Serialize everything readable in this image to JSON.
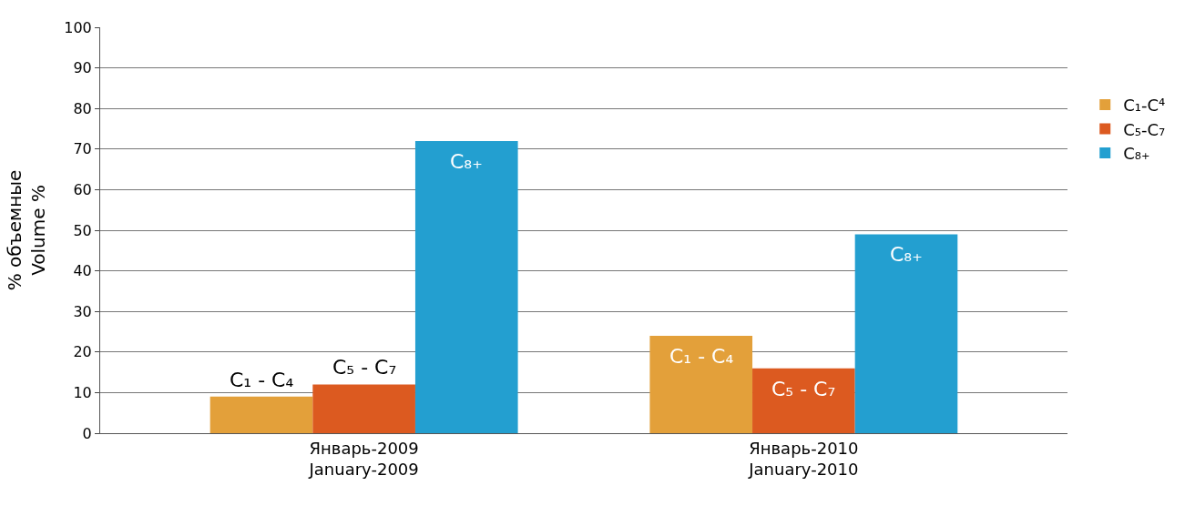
{
  "chart_data": {
    "type": "bar",
    "categories": [
      "Январь-2009\nJanuary-2009",
      "Январь-2010\nJanuary-2010"
    ],
    "ylabel": "% объемные\nVolume %",
    "series": [
      {
        "name": "C₁-C⁴",
        "color": "#e3a03a",
        "values": [
          9,
          24
        ]
      },
      {
        "name": "C₅-C₇",
        "color": "#dc5a20",
        "values": [
          12,
          16
        ]
      },
      {
        "name": "C₈₊",
        "color": "#239fd0",
        "values": [
          72,
          49
        ]
      }
    ],
    "annotations": [
      "C₁ - C₄",
      "C₅ - C₇",
      "C₈₊",
      "C₁ - C₄",
      "C₅ - C₇",
      "C₈₊"
    ],
    "ylim": [
      0,
      100
    ],
    "yticks": [
      0,
      10,
      20,
      30,
      40,
      50,
      60,
      70,
      80,
      90,
      100
    ],
    "grid": "y",
    "legend": "right"
  }
}
